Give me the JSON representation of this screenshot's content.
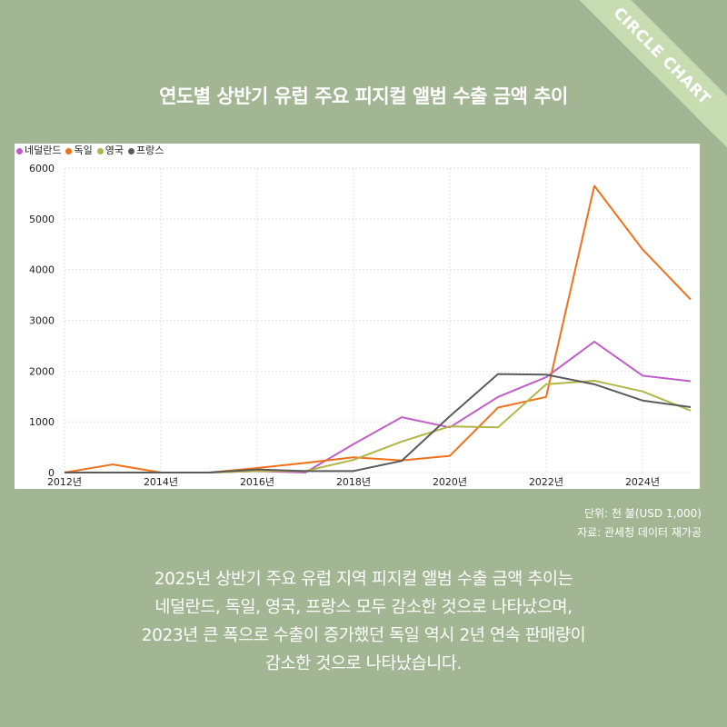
{
  "badge": "CIRCLE CHART",
  "title": "연도별 상반기 유럽 주요 피지컬 앨범 수출 금액 추이",
  "notes": {
    "unit": "단위: 천 불(USD 1,000)",
    "source": "자료: 관세청 데이터 재가공"
  },
  "description": [
    "2025년 상반기 주요 유럽 지역 피지컬 앨범 수출 금액 추이는",
    "네덜란드, 독일, 영국, 프랑스 모두 감소한 것으로 나타났으며,",
    "2023년 큰 폭으로 수출이 증가했던 독일 역시 2년 연속 판매량이",
    "감소한 것으로 나타났습니다."
  ],
  "chart_data": {
    "type": "line",
    "x": [
      2012,
      2013,
      2014,
      2015,
      2016,
      2017,
      2018,
      2019,
      2020,
      2021,
      2022,
      2023,
      2024,
      2025
    ],
    "x_tick_labels": [
      "2012년",
      "2014년",
      "2016년",
      "2018년",
      "2020년",
      "2022년",
      "2024년"
    ],
    "x_tick_values": [
      2012,
      2014,
      2016,
      2018,
      2020,
      2022,
      2024
    ],
    "xlim": [
      2012,
      2025
    ],
    "ylim": [
      0,
      6000
    ],
    "y_ticks": [
      0,
      1000,
      2000,
      3000,
      4000,
      5000,
      6000
    ],
    "y_tick_labels": [
      "0",
      "1000",
      "2000",
      "3000",
      "4000",
      "5000",
      "6000"
    ],
    "grid": true,
    "legend_position": "top-left",
    "series": [
      {
        "name": "네덜란드",
        "color": "#c05ec9",
        "values": [
          0,
          0,
          0,
          0,
          30,
          0,
          560,
          1090,
          890,
          1490,
          1880,
          2580,
          1910,
          1800
        ]
      },
      {
        "name": "독일",
        "color": "#f0711c",
        "values": [
          0,
          160,
          0,
          0,
          90,
          190,
          300,
          240,
          330,
          1280,
          1490,
          5650,
          4400,
          3410
        ]
      },
      {
        "name": "영국",
        "color": "#b1b545",
        "values": [
          0,
          0,
          0,
          0,
          30,
          30,
          250,
          610,
          910,
          890,
          1740,
          1810,
          1600,
          1220
        ]
      },
      {
        "name": "프랑스",
        "color": "#5b5b5b",
        "values": [
          0,
          0,
          0,
          0,
          60,
          30,
          30,
          230,
          1110,
          1940,
          1930,
          1740,
          1420,
          1290
        ]
      }
    ]
  }
}
